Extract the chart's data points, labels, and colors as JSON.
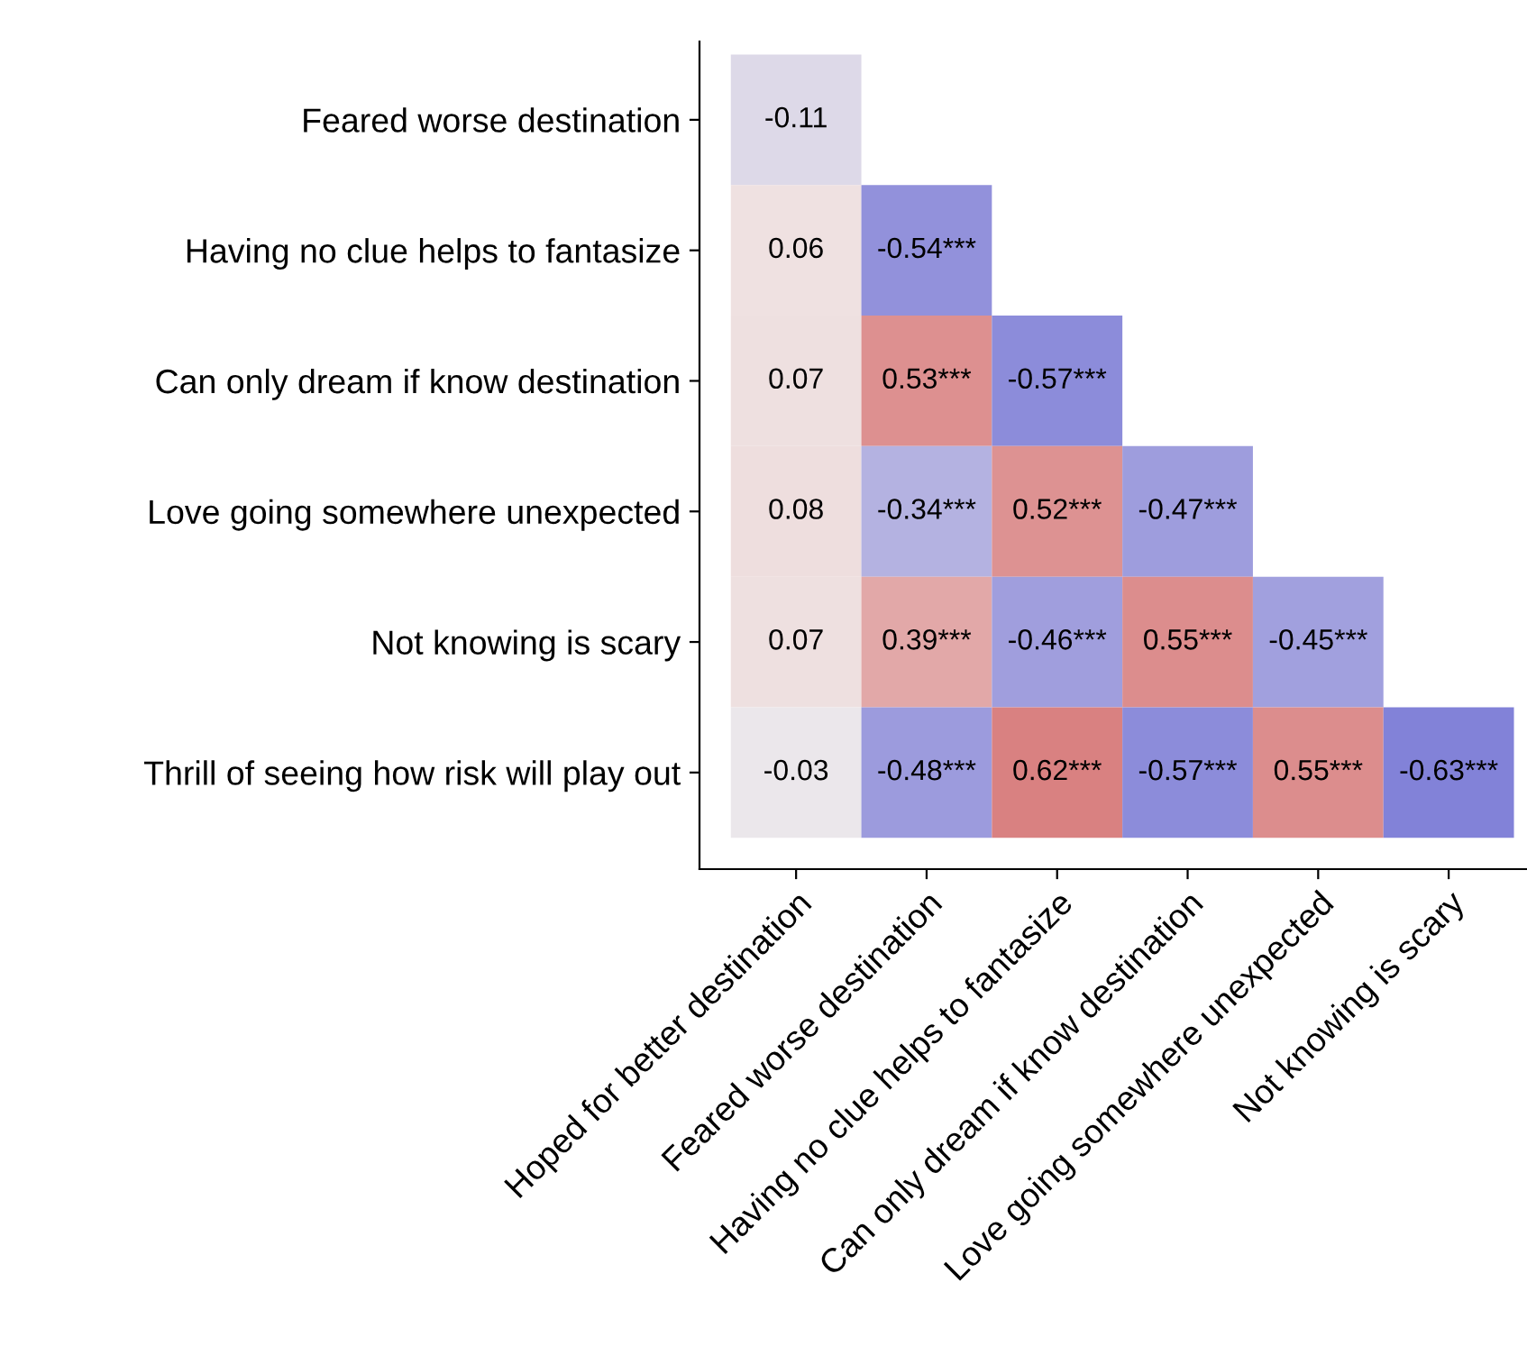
{
  "chart_data": {
    "type": "heatmap",
    "categories": [
      "Hoped for better destination",
      "Feared worse destination",
      "Having no clue helps to fantasize",
      "Can only dream if know destination",
      "Love going somewhere unexpected",
      "Not knowing is scary"
    ],
    "y_categories": [
      "Feared worse destination",
      "Having no clue helps to fantasize",
      "Can only dream if know destination",
      "Love going somewhere unexpected",
      "Not knowing is scary",
      "Thrill of seeing how risk will play out"
    ],
    "cells": [
      [
        -0.11,
        null,
        null,
        null,
        null,
        null
      ],
      [
        0.06,
        -0.54,
        null,
        null,
        null,
        null
      ],
      [
        0.07,
        0.53,
        -0.57,
        null,
        null,
        null
      ],
      [
        0.08,
        -0.34,
        0.52,
        -0.47,
        null,
        null
      ],
      [
        0.07,
        0.39,
        -0.46,
        0.55,
        -0.45,
        null
      ],
      [
        -0.03,
        -0.48,
        0.62,
        -0.57,
        0.55,
        -0.63
      ]
    ],
    "cell_labels": [
      [
        "-0.11",
        null,
        null,
        null,
        null,
        null
      ],
      [
        "0.06",
        "-0.54***",
        null,
        null,
        null,
        null
      ],
      [
        "0.07",
        "0.53***",
        "-0.57***",
        null,
        null,
        null
      ],
      [
        "0.08",
        "-0.34***",
        "0.52***",
        "-0.47***",
        null,
        null
      ],
      [
        "0.07",
        "0.39***",
        "-0.46***",
        "0.55***",
        "-0.45***",
        null
      ],
      [
        "-0.03",
        "-0.48***",
        "0.62***",
        "-0.57***",
        "0.55***",
        "-0.63***"
      ]
    ],
    "colors": [
      "#8282d8",
      "#f1ecec",
      "#d97f7f"
    ]
  }
}
